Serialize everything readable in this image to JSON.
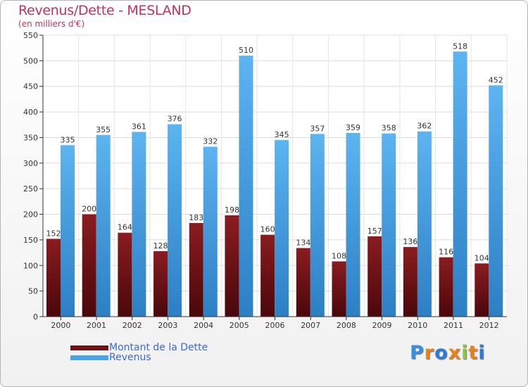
{
  "title": "Revenus/Dette - MESLAND",
  "subtitle": "(en milliers d'€)",
  "colors": {
    "title": "#c8305a",
    "dette": "#6e1014",
    "revenus": "#4aa3e6",
    "legend_text": "#3a6ad8"
  },
  "legend": [
    {
      "label": "Montant de la Dette",
      "color": "#6e1014"
    },
    {
      "label": "Revenus",
      "color": "#4aa3e6"
    }
  ],
  "logo": {
    "text": "Proxiti",
    "letter_colors": [
      "#3a8ee0",
      "#e8821e",
      "#2e7bd6",
      "#e8821e",
      "#8cc63e",
      "#e8821e",
      "#2e7bd6"
    ]
  },
  "chart_data": {
    "type": "bar",
    "title": "Revenus/Dette - MESLAND",
    "subtitle": "(en milliers d'€)",
    "xlabel": "",
    "ylabel": "",
    "ylim": [
      0,
      550
    ],
    "yticks": [
      0,
      50,
      100,
      150,
      200,
      250,
      300,
      350,
      400,
      450,
      500,
      550
    ],
    "grid": true,
    "categories": [
      "2000",
      "2001",
      "2002",
      "2003",
      "2004",
      "2005",
      "2006",
      "2007",
      "2008",
      "2009",
      "2010",
      "2011",
      "2012"
    ],
    "series": [
      {
        "name": "Montant de la Dette",
        "color": "#6e1014",
        "values": [
          152,
          200,
          164,
          128,
          183,
          198,
          160,
          134,
          108,
          157,
          136,
          116,
          104
        ]
      },
      {
        "name": "Revenus",
        "color": "#4aa3e6",
        "values": [
          335,
          355,
          361,
          376,
          332,
          510,
          345,
          357,
          359,
          358,
          362,
          518,
          452
        ]
      }
    ],
    "legend_position": "bottom-left"
  }
}
